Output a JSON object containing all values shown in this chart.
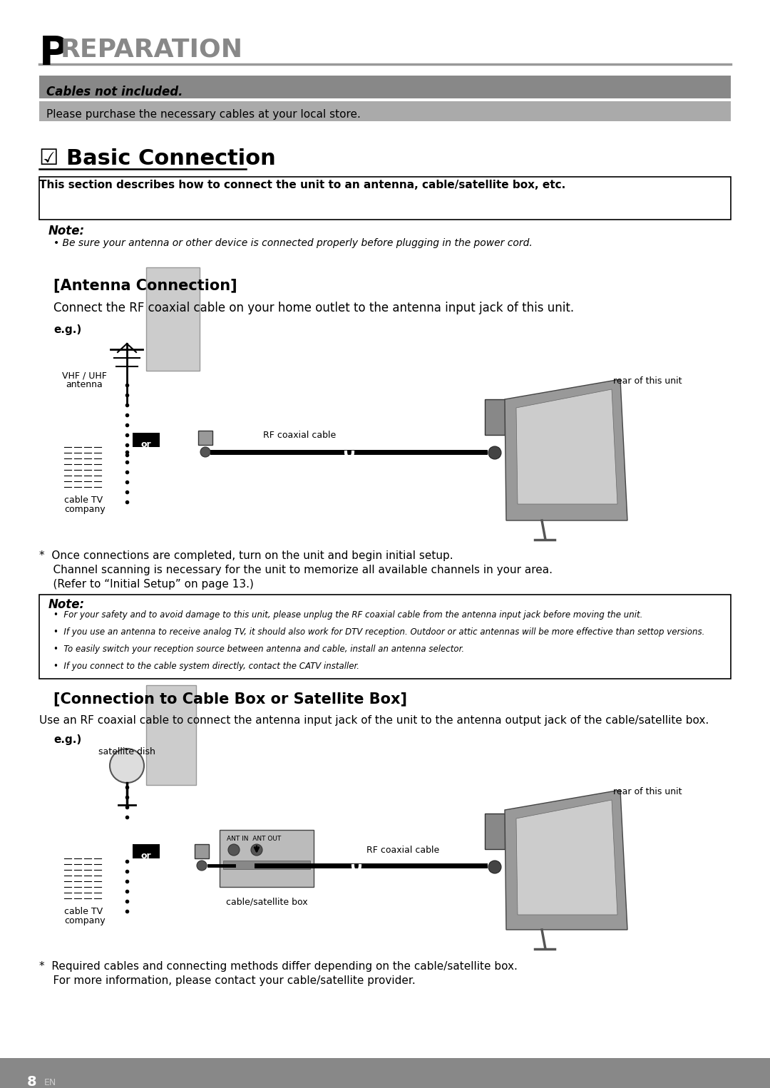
{
  "page_bg": "#ffffff",
  "title_letter": "P",
  "title_rest": "REPARATION",
  "title_color": "#000000",
  "title_rest_color": "#888888",
  "line_color": "#999999",
  "banner1_bg": "#888888",
  "banner1_text": "Cables not included.",
  "banner1_text_color": "#000000",
  "banner2_bg": "#aaaaaa",
  "banner2_text": "Please purchase the necessary cables at your local store.",
  "banner2_text_color": "#000000",
  "basic_connection_title": "☑ Basic Connection",
  "basic_connection_subtitle": "This section describes how to connect the unit to an antenna, cable/satellite box, etc.",
  "note1_title": "Note:",
  "note1_body": "• Be sure your antenna or other device is connected properly before plugging in the power cord.",
  "antenna_section_title": "[Antenna Connection]",
  "antenna_desc": "Connect the RF coaxial cable on your home outlet to the antenna input jack of this unit.",
  "eg_label": "e.g.)",
  "antenna_label1": "VHF / UHF",
  "antenna_label2": "antenna",
  "rear_label1": "rear of this unit",
  "rf_cable_label": "RF coaxial cable",
  "cable_tv_label1": "cable TV",
  "cable_tv_label2": "company",
  "or_label": "or",
  "asterisk_note1": "*  Once connections are completed, turn on the unit and begin initial setup.",
  "asterisk_note2": "    Channel scanning is necessary for the unit to memorize all available channels in your area.",
  "asterisk_note3": "    (Refer to “Initial Setup” on page 13.)",
  "note2_title": "Note:",
  "note2_bullets": [
    "•  For your safety and to avoid damage to this unit, please unplug the RF coaxial cable from the antenna input jack before moving the unit.",
    "•  If you use an antenna to receive analog TV, it should also work for DTV reception. Outdoor or attic antennas will be more effective than settop versions.",
    "•  To easily switch your reception source between antenna and cable, install an antenna selector.",
    "•  If you connect to the cable system directly, contact the CATV installer."
  ],
  "satellite_section_title": "[Connection to Cable Box or Satellite Box]",
  "satellite_desc": "Use an RF coaxial cable to connect the antenna input jack of the unit to the antenna output jack of the cable/satellite box.",
  "eg_label2": "e.g.)",
  "satellite_dish_label": "satellite dish",
  "rear_label2": "rear of this unit",
  "rf_cable_label2": "RF coaxial cable",
  "cable_tv_label3": "cable TV",
  "cable_tv_label4": "company",
  "or_label2": "or",
  "ant_in_label": "ANT IN  ANT OUT",
  "cable_sat_box_label": "cable/satellite box",
  "asterisk_note4": "*  Required cables and connecting methods differ depending on the cable/satellite box.",
  "asterisk_note5": "    For more information, please contact your cable/satellite provider.",
  "page_number": "8",
  "page_en": "EN"
}
